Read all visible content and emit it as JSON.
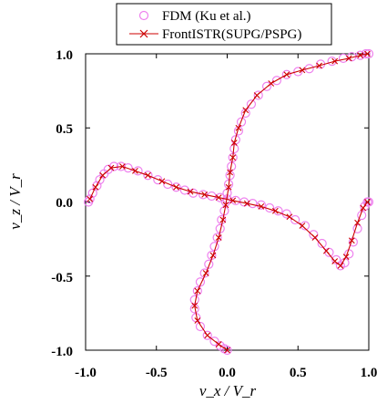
{
  "chart_data": {
    "type": "line",
    "xlabel": "v_x / V_r",
    "ylabel": "v_z / V_r",
    "xlim": [
      -1.0,
      1.0
    ],
    "ylim": [
      -1.0,
      1.0
    ],
    "x_ticks": [
      "-1.0",
      "-0.5",
      "0.0",
      "0.5",
      "1.0"
    ],
    "y_ticks": [
      "1.0",
      "0.5",
      "0.0",
      "-0.5",
      "-1.0"
    ],
    "grid": false,
    "legend_position": "top",
    "series": [
      {
        "name": "FDM (Ku et al.)",
        "marker": "circle",
        "color": "#ee82ee",
        "curves": [
          {
            "x": [
              -0.98,
              -0.97,
              -0.95,
              -0.92,
              -0.9,
              -0.87,
              -0.84,
              -0.8,
              -0.75,
              -0.7,
              -0.63,
              -0.56,
              -0.49,
              -0.42,
              -0.36,
              -0.3,
              -0.24,
              -0.17,
              -0.11,
              -0.05,
              0.0,
              0.06,
              0.12,
              0.18,
              0.24,
              0.3,
              0.36,
              0.42,
              0.48,
              0.55,
              0.61,
              0.67,
              0.72,
              0.77,
              0.8,
              0.83,
              0.86,
              0.89,
              0.92,
              0.95,
              0.97,
              0.99,
              1.0
            ],
            "y": [
              0.0,
              0.02,
              0.06,
              0.11,
              0.15,
              0.19,
              0.22,
              0.24,
              0.24,
              0.23,
              0.21,
              0.18,
              0.15,
              0.12,
              0.1,
              0.08,
              0.06,
              0.05,
              0.04,
              0.03,
              0.02,
              0.01,
              0.0,
              -0.01,
              -0.02,
              -0.04,
              -0.06,
              -0.08,
              -0.12,
              -0.16,
              -0.22,
              -0.28,
              -0.34,
              -0.39,
              -0.43,
              -0.41,
              -0.35,
              -0.27,
              -0.18,
              -0.09,
              -0.03,
              0.0,
              0.0
            ]
          },
          {
            "x": [
              0.0,
              -0.02,
              -0.05,
              -0.09,
              -0.14,
              -0.19,
              -0.22,
              -0.23,
              -0.23,
              -0.21,
              -0.19,
              -0.16,
              -0.13,
              -0.11,
              -0.09,
              -0.07,
              -0.05,
              -0.04,
              -0.02,
              -0.01,
              0.0,
              0.01,
              0.02,
              0.03,
              0.04,
              0.05,
              0.06,
              0.08,
              0.1,
              0.13,
              0.17,
              0.22,
              0.28,
              0.35,
              0.42,
              0.5,
              0.58,
              0.66,
              0.74,
              0.82,
              0.88,
              0.94,
              0.98,
              1.0
            ],
            "y": [
              -1.0,
              -0.99,
              -0.97,
              -0.94,
              -0.9,
              -0.84,
              -0.78,
              -0.72,
              -0.66,
              -0.6,
              -0.54,
              -0.48,
              -0.42,
              -0.36,
              -0.3,
              -0.24,
              -0.18,
              -0.12,
              -0.06,
              0.0,
              0.06,
              0.12,
              0.18,
              0.24,
              0.3,
              0.36,
              0.42,
              0.48,
              0.54,
              0.6,
              0.66,
              0.72,
              0.78,
              0.82,
              0.86,
              0.88,
              0.9,
              0.93,
              0.95,
              0.97,
              0.98,
              0.99,
              1.0,
              1.0
            ]
          }
        ]
      },
      {
        "name": "FrontISTR(SUPG/PSPG)",
        "marker": "x",
        "color": "#cc0000",
        "curves": [
          {
            "x": [
              -0.97,
              -0.93,
              -0.88,
              -0.82,
              -0.74,
              -0.65,
              -0.56,
              -0.46,
              -0.36,
              -0.26,
              -0.16,
              -0.06,
              0.04,
              0.14,
              0.24,
              0.34,
              0.44,
              0.53,
              0.62,
              0.7,
              0.76,
              0.8,
              0.84,
              0.88,
              0.92,
              0.96,
              0.99
            ],
            "y": [
              0.02,
              0.1,
              0.18,
              0.23,
              0.24,
              0.21,
              0.18,
              0.14,
              0.1,
              0.07,
              0.05,
              0.03,
              0.01,
              -0.01,
              -0.03,
              -0.06,
              -0.1,
              -0.16,
              -0.24,
              -0.33,
              -0.4,
              -0.43,
              -0.37,
              -0.26,
              -0.14,
              -0.04,
              0.0
            ]
          },
          {
            "x": [
              0.0,
              -0.06,
              -0.14,
              -0.21,
              -0.23,
              -0.21,
              -0.15,
              -0.1,
              -0.06,
              -0.03,
              -0.01,
              0.01,
              0.02,
              0.04,
              0.05,
              0.08,
              0.13,
              0.21,
              0.31,
              0.42,
              0.53,
              0.65,
              0.76,
              0.86,
              0.94,
              0.99
            ],
            "y": [
              -1.0,
              -0.96,
              -0.9,
              -0.8,
              -0.7,
              -0.6,
              -0.48,
              -0.36,
              -0.24,
              -0.12,
              -0.02,
              0.1,
              0.2,
              0.3,
              0.4,
              0.5,
              0.62,
              0.72,
              0.8,
              0.86,
              0.89,
              0.92,
              0.95,
              0.97,
              0.99,
              1.0
            ]
          }
        ]
      }
    ]
  }
}
